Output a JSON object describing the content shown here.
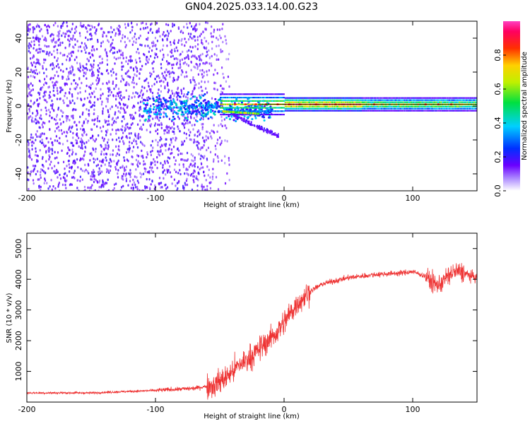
{
  "title": "GN04.2025.033.14.00.G23",
  "chart_data": [
    {
      "type": "heatmap",
      "xlabel": "Height of straight line (km)",
      "ylabel": "Frequency (Hz)",
      "xlim": [
        -200,
        150
      ],
      "ylim": [
        -50,
        50
      ],
      "xticks": [
        -200,
        -100,
        0,
        100
      ],
      "yticks": [
        -40,
        -20,
        0,
        20,
        40
      ],
      "colorbar": {
        "label": "Normalized spectral amplitude",
        "range": [
          0,
          1
        ],
        "ticks": [
          0.0,
          0.2,
          0.4,
          0.6,
          0.8
        ],
        "colormap": "rainbow (white → purple → blue → cyan → green → yellow → orange → red → magenta)"
      },
      "features": {
        "noise_region_x": [
          -200,
          -48
        ],
        "carrier_line_frequency": 1,
        "carrier_line_x": [
          -50,
          150
        ]
      }
    },
    {
      "type": "line",
      "xlabel": "Height of straight line (km)",
      "ylabel": "SNR (10 * v/v)",
      "xlim": [
        -200,
        150
      ],
      "ylim": [
        0,
        5500
      ],
      "xticks": [
        -200,
        -100,
        0,
        100
      ],
      "yticks": [
        1000,
        2000,
        3000,
        4000,
        5000
      ],
      "color": "#ee3333",
      "series": [
        {
          "x": [
            -200,
            -150,
            -100,
            -70,
            -55,
            -45,
            -35,
            -25,
            -15,
            -5,
            0,
            5,
            10,
            15,
            20,
            30,
            40,
            50,
            60,
            70,
            80,
            90,
            100,
            110,
            115,
            120,
            125,
            130,
            135,
            140,
            145,
            150
          ],
          "values": [
            300,
            300,
            380,
            450,
            550,
            800,
            1200,
            1500,
            1900,
            2300,
            2600,
            2900,
            3200,
            3400,
            3600,
            3850,
            3950,
            4050,
            4100,
            4150,
            4180,
            4200,
            4250,
            4100,
            3900,
            3800,
            4000,
            4200,
            4250,
            4200,
            4100,
            4050
          ]
        }
      ]
    }
  ]
}
